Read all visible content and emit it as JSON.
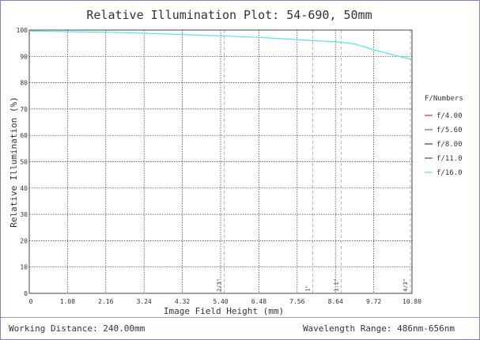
{
  "chart_data": {
    "type": "line",
    "title": "Relative Illumination Plot: 54-690, 50mm",
    "xlabel": "Image Field Height (mm)",
    "ylabel": "Relative Illumination (%)",
    "xlim": [
      0,
      10.8
    ],
    "ylim": [
      0,
      100
    ],
    "x_ticks": [
      "0",
      "1.08",
      "2.16",
      "3.24",
      "4.32",
      "5.40",
      "6.48",
      "7.56",
      "8.64",
      "9.72",
      "10.80"
    ],
    "y_ticks": [
      "0",
      "10",
      "20",
      "30",
      "40",
      "50",
      "60",
      "70",
      "80",
      "90",
      "100"
    ],
    "grid": true,
    "legend": {
      "title": "F/Numbers",
      "placement": "right",
      "entries": [
        {
          "label": "f/4.00",
          "color": "#e03030"
        },
        {
          "label": "f/5.60",
          "color": "#30a030"
        },
        {
          "label": "f/8.00",
          "color": "#3030d0"
        },
        {
          "label": "f/11.0",
          "color": "#505050"
        },
        {
          "label": "f/16.0",
          "color": "#4fe8e0"
        }
      ]
    },
    "sensor_markers": [
      {
        "label": "2/3\"",
        "x": 5.5
      },
      {
        "label": "1\"",
        "x": 8.0
      },
      {
        "label": "1.1\"",
        "x": 8.8
      },
      {
        "label": "4/3\"",
        "x": 10.8
      }
    ],
    "series": [
      {
        "name": "f/16.0",
        "color": "#4fe8e0",
        "x": [
          0,
          1.08,
          2.16,
          3.24,
          4.32,
          5.4,
          6.48,
          7.56,
          8.1,
          8.64,
          9.18,
          9.72,
          10.26,
          10.8
        ],
        "y": [
          99.6,
          99.4,
          99.2,
          98.8,
          98.3,
          97.8,
          97.2,
          96.4,
          95.9,
          95.6,
          94.7,
          92.5,
          90.6,
          88.8
        ]
      }
    ]
  },
  "footer": {
    "left": "Working Distance: 240.00mm",
    "right": "Wavelength Range: 486nm-656nm"
  }
}
